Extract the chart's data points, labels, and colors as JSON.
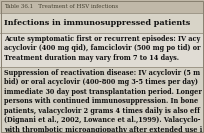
{
  "title": "Table 36.1   Treatment of HSV infections",
  "bg_outer": "#c8c0b0",
  "bg_row1": "#e8e4dc",
  "bg_row2": "#d8d4cc",
  "bg_row3": "#ccc8bc",
  "border_color": "#888070",
  "text_color": "#111111",
  "title_color": "#444030",
  "header_text": "Infections in immunosuppressed patients",
  "row1_text": "Acute symptomatic first or recurrent episodes: IV acy\nacyclovir (400 mg qid), famciclovir (500 mg po tid) or\nTreatment duration may vary from 7 to 14 days.",
  "row2_text": "Suppression of reactivation disease: IV acyclovir (5 m\nbid) or oral acyclovir (400-800 mg 3-5 times per day)\nimmediate 30 day post transplantation period. Longer\npersons with continued immunosuppression. In bone\npatients, valacyclovir 2 grams 4 times daily is also eff\n(Dignani et al., 2002, Lowance et al.,1999). Valacyclo-\nwith thrombotic microangiopathy after extended use i",
  "title_fontsize": 4.0,
  "header_fontsize": 5.8,
  "body_fontsize": 4.7,
  "figw": 2.04,
  "figh": 1.33,
  "dpi": 100
}
